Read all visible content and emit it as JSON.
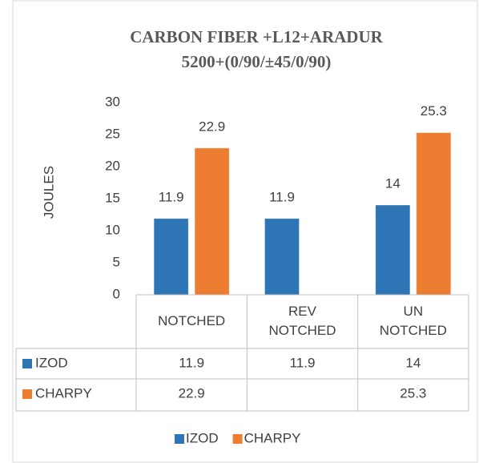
{
  "chart_data": {
    "type": "bar",
    "title": [
      "CARBON FIBER +L12+ARADUR",
      "5200+(0/90/±45/0/90)"
    ],
    "y_label": "JOULES",
    "categories": [
      [
        "NOTCHED"
      ],
      [
        "REV",
        "NOTCHED"
      ],
      [
        "UN",
        "NOTCHED"
      ]
    ],
    "series": [
      {
        "name": "IZOD",
        "color": "#2e75b6",
        "values": [
          11.9,
          11.9,
          14
        ]
      },
      {
        "name": "CHARPY",
        "color": "#ed7d31",
        "values": [
          22.9,
          null,
          25.3
        ]
      }
    ],
    "ylim": [
      0,
      30
    ],
    "yticks": [
      0,
      5,
      10,
      15,
      20,
      25,
      30
    ],
    "grid": false,
    "legend": "bottom",
    "data_table": true
  }
}
